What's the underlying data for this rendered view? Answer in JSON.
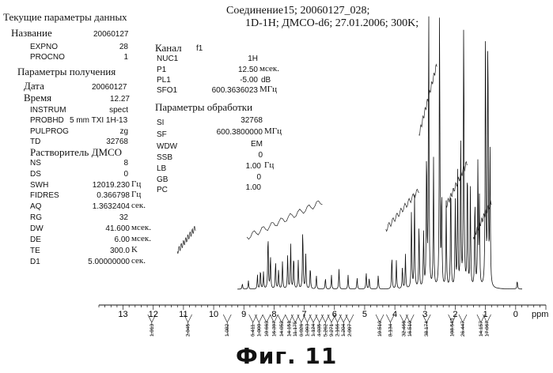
{
  "header": {
    "compound": "Соединение15; 20060127_028;",
    "line2": "1D-1H; ДМСО-d6; 27.01.2006; 300K;"
  },
  "params_left": {
    "current_title": "Текущие параметры данных",
    "name_label": "Название",
    "name_value": "20060127",
    "expno_label": "EXPNO",
    "expno_value": "28",
    "procno_label": "PROCNO",
    "procno_value": "1",
    "acq_title": "Параметры получения",
    "date_label": "Дата",
    "date_value": "20060127",
    "time_label": "Время",
    "time_value": "12.27",
    "instrum_label": "INSTRUM",
    "instrum_value": "spect",
    "probhd_label": "PROBHD",
    "probhd_value": "5 mm TXI 1H-13",
    "pulprog_label": "PULPROG",
    "pulprog_value": "zg",
    "td_label": "TD",
    "td_value": "32768",
    "solvent_line": "Растворитель ДМСО",
    "ns_label": "NS",
    "ns_value": "8",
    "ds_label": "DS",
    "ds_value": "0",
    "swh_label": "SWH",
    "swh_value": "12019.230",
    "swh_unit": "Гц",
    "fidres_label": "FIDRES",
    "fidres_value": "0.366798",
    "fidres_unit": "Гц",
    "aq_label": "AQ",
    "aq_value": "1.3632404",
    "aq_unit": "сек.",
    "rg_label": "RG",
    "rg_value": "32",
    "dw_label": "DW",
    "dw_value": "41.600",
    "dw_unit": "мсек.",
    "de_label": "DE",
    "de_value": "6.00",
    "de_unit": "мсек.",
    "te_label": "TE",
    "te_value": "300.0",
    "te_unit": "K",
    "d1_label": "D1",
    "d1_value": "5.00000000",
    "d1_unit": "сек."
  },
  "params_channel": {
    "title": "Канал",
    "channel": "f1",
    "nuc1_label": "NUC1",
    "nuc1_value": "1H",
    "p1_label": "P1",
    "p1_value": "12.50",
    "p1_unit": "мсек.",
    "pl1_label": "PL1",
    "pl1_value": "-5.00",
    "pl1_unit": "dB",
    "sfo1_label": "SFO1",
    "sfo1_value": "600.3636023",
    "sfo1_unit": "МГц"
  },
  "params_processing": {
    "title": "Параметры обработки",
    "si_label": "SI",
    "si_value": "32768",
    "sf_label": "SF",
    "sf_value": "600.3800000",
    "sf_unit": "МГц",
    "wdw_label": "WDW",
    "wdw_value": "EM",
    "ssb_label": "SSB",
    "ssb_value": "0",
    "lb_label": "LB",
    "lb_value": "1.00",
    "lb_unit": "Гц",
    "gb_label": "GB",
    "gb_value": "0",
    "pc_label": "PC",
    "pc_value": "1.00"
  },
  "chart_data": {
    "type": "line",
    "xlabel": "ppm",
    "xlim": [
      13.8,
      -1.0
    ],
    "x_reversed": true,
    "ticks": [
      "13",
      "12",
      "11",
      "10",
      "9",
      "8",
      "7",
      "6",
      "5",
      "4",
      "3",
      "2",
      "1",
      "0"
    ],
    "peaks": [
      {
        "ppm": 12.1,
        "h": 0.02
      },
      {
        "ppm": 11.9,
        "h": 0.02
      },
      {
        "ppm": 10.85,
        "h": 0.09
      },
      {
        "ppm": 9.05,
        "h": 0.02
      },
      {
        "ppm": 8.85,
        "h": 0.03
      },
      {
        "ppm": 8.55,
        "h": 0.05
      },
      {
        "ppm": 8.45,
        "h": 0.07
      },
      {
        "ppm": 8.35,
        "h": 0.06
      },
      {
        "ppm": 8.2,
        "h": 0.2
      },
      {
        "ppm": 8.12,
        "h": 0.12
      },
      {
        "ppm": 7.95,
        "h": 0.1
      },
      {
        "ppm": 7.85,
        "h": 0.07
      },
      {
        "ppm": 7.72,
        "h": 0.1
      },
      {
        "ppm": 7.55,
        "h": 0.12
      },
      {
        "ppm": 7.45,
        "h": 0.16
      },
      {
        "ppm": 7.35,
        "h": 0.12
      },
      {
        "ppm": 7.2,
        "h": 0.1
      },
      {
        "ppm": 7.05,
        "h": 0.22
      },
      {
        "ppm": 6.95,
        "h": 0.12
      },
      {
        "ppm": 6.8,
        "h": 0.08
      },
      {
        "ppm": 6.6,
        "h": 0.05
      },
      {
        "ppm": 6.3,
        "h": 0.04
      },
      {
        "ppm": 6.1,
        "h": 0.05
      },
      {
        "ppm": 5.85,
        "h": 0.07
      },
      {
        "ppm": 5.55,
        "h": 0.05
      },
      {
        "ppm": 5.25,
        "h": 0.04
      },
      {
        "ppm": 4.95,
        "h": 0.06
      },
      {
        "ppm": 4.85,
        "h": 0.04
      },
      {
        "ppm": 4.55,
        "h": 0.05
      },
      {
        "ppm": 4.1,
        "h": 0.12
      },
      {
        "ppm": 3.95,
        "h": 0.1
      },
      {
        "ppm": 3.75,
        "h": 0.08
      },
      {
        "ppm": 3.65,
        "h": 0.12
      },
      {
        "ppm": 3.45,
        "h": 0.28
      },
      {
        "ppm": 3.35,
        "h": 0.33
      },
      {
        "ppm": 3.2,
        "h": 0.23
      },
      {
        "ppm": 3.05,
        "h": 0.2
      },
      {
        "ppm": 2.95,
        "h": 0.5
      },
      {
        "ppm": 2.88,
        "h": 1.0
      },
      {
        "ppm": 2.72,
        "h": 0.45
      },
      {
        "ppm": 2.52,
        "h": 1.0
      },
      {
        "ppm": 2.45,
        "h": 0.35
      },
      {
        "ppm": 2.3,
        "h": 0.3
      },
      {
        "ppm": 2.15,
        "h": 0.4
      },
      {
        "ppm": 2.0,
        "h": 0.3
      },
      {
        "ppm": 1.92,
        "h": 0.4
      },
      {
        "ppm": 1.82,
        "h": 0.55
      },
      {
        "ppm": 1.72,
        "h": 1.0
      },
      {
        "ppm": 1.6,
        "h": 0.45
      },
      {
        "ppm": 1.5,
        "h": 0.35
      },
      {
        "ppm": 1.35,
        "h": 0.33
      },
      {
        "ppm": 1.25,
        "h": 0.45
      },
      {
        "ppm": 1.2,
        "h": 0.3
      },
      {
        "ppm": 1.0,
        "h": 0.93
      },
      {
        "ppm": 0.92,
        "h": 0.95
      },
      {
        "ppm": 0.85,
        "h": 0.5
      },
      {
        "ppm": -0.05,
        "h": 0.03
      }
    ],
    "integrals": [
      {
        "ppm": 12.05,
        "label": "1.013"
      },
      {
        "ppm": 10.85,
        "label": "2.045"
      },
      {
        "ppm": 9.55,
        "label": "1.082"
      },
      {
        "ppm": 8.7,
        "label": "6.411"
      },
      {
        "ppm": 8.5,
        "label": "1.000"
      },
      {
        "ppm": 8.25,
        "label": "10.663"
      },
      {
        "ppm": 8.0,
        "label": "16.397"
      },
      {
        "ppm": 7.75,
        "label": "14.052"
      },
      {
        "ppm": 7.5,
        "label": "14.151"
      },
      {
        "ppm": 7.3,
        "label": "11.175"
      },
      {
        "ppm": 7.1,
        "label": "6.026"
      },
      {
        "ppm": 6.9,
        "label": "1.093"
      },
      {
        "ppm": 6.7,
        "label": "1.124"
      },
      {
        "ppm": 6.5,
        "label": "4.035"
      },
      {
        "ppm": 6.3,
        "label": "5.262"
      },
      {
        "ppm": 6.1,
        "label": "9.271"
      },
      {
        "ppm": 5.9,
        "label": "2.166"
      },
      {
        "ppm": 5.7,
        "label": "1.204"
      },
      {
        "ppm": 5.5,
        "label": "2.097"
      },
      {
        "ppm": 4.5,
        "label": "19.510"
      },
      {
        "ppm": 4.15,
        "label": "8.134"
      },
      {
        "ppm": 3.7,
        "label": "32.466"
      },
      {
        "ppm": 3.5,
        "label": "16.510"
      },
      {
        "ppm": 2.95,
        "label": "38.174"
      },
      {
        "ppm": 2.1,
        "label": "108.543"
      },
      {
        "ppm": 1.75,
        "label": "26.447"
      },
      {
        "ppm": 1.15,
        "label": "14.157"
      },
      {
        "ppm": 0.95,
        "label": "17.067"
      }
    ]
  },
  "figure_caption": "Фиг. 11"
}
